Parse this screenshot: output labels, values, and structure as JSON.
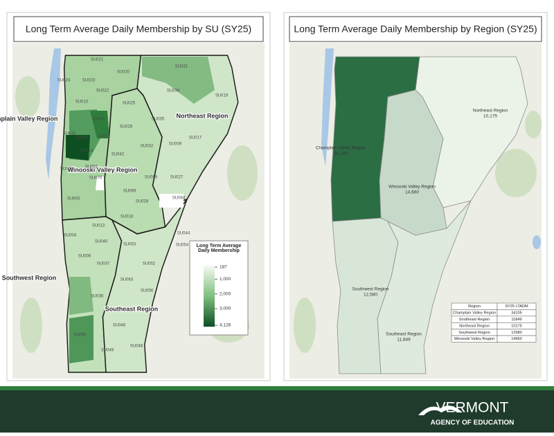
{
  "left_panel": {
    "title": "Long Term Average Daily Membership by SU (SY25)",
    "region_labels": [
      "Champlain Valley Region",
      "Northeast Region",
      "Winooski Valley Region",
      "Southwest Region",
      "Southeast Region"
    ],
    "su_labels": [
      "SU024",
      "SU021",
      "SU020",
      "SU031",
      "SU023",
      "SU022",
      "SU034",
      "SU019",
      "SU010",
      "SU025",
      "SU035",
      "SU045",
      "SU015",
      "SU016",
      "SU012",
      "SU026",
      "SU014",
      "SU032",
      "SU009",
      "SU017",
      "SU042",
      "SU002",
      "SU001",
      "SU070",
      "SU068",
      "SU027",
      "SU069",
      "SU003",
      "SU028",
      "SU064",
      "SU018",
      "SU013",
      "SU044",
      "SU004",
      "SU040",
      "SU053",
      "SU054",
      "SU006",
      "SU037",
      "SU052",
      "SU063",
      "SU056",
      "SU036",
      "SU046",
      "SU099",
      "SU048",
      "SU049"
    ],
    "legend": {
      "title": "Long Term Average Daily Membership",
      "ticks": [
        187,
        {
          "value": 1000,
          "label": "1,000"
        },
        {
          "value": 2000,
          "label": "2,000"
        },
        {
          "value": 3000,
          "label": "3,000"
        },
        {
          "value": 4126,
          "label": "4,126"
        }
      ]
    }
  },
  "right_panel": {
    "title": "Long Term Average Daily Membership by Region (SY25)",
    "regions": [
      {
        "name": "Champlain Valley Region",
        "value": 34105,
        "value_label": "34,105"
      },
      {
        "name": "Northeast Region",
        "value": 10175,
        "value_label": "10,175"
      },
      {
        "name": "Winooski Valley Region",
        "value": 14660,
        "value_label": "14,660"
      },
      {
        "name": "Southwest Region",
        "value": 12580,
        "value_label": "12,580"
      },
      {
        "name": "Southeast Region",
        "value": 11849,
        "value_label": "11,849"
      }
    ],
    "table": {
      "header": [
        "Region",
        "SY25 LTADM"
      ],
      "rows": [
        [
          "Champlain Valley Region",
          34105
        ],
        [
          "Southeast Region",
          11849
        ],
        [
          "Northeast Region",
          10175
        ],
        [
          "Southwest Region",
          12580
        ],
        [
          "Winooski Valley Region",
          14660
        ]
      ]
    }
  },
  "footer": {
    "brand": "VERMONT",
    "subtitle": "AGENCY OF EDUCATION"
  }
}
